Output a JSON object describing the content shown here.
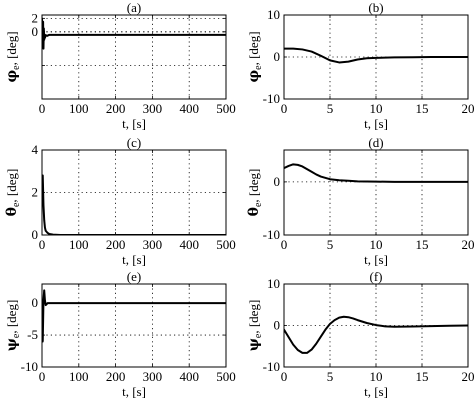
{
  "chart_data": [
    {
      "type": "line",
      "title": "(a)",
      "xlabel": "t, [s]",
      "ylabel": {
        "symbol": "φ",
        "sub": "e",
        "unit": ", [deg]"
      },
      "xlim": [
        0,
        500
      ],
      "ylim": [
        -10,
        2.5
      ],
      "xticks": [
        0,
        100,
        200,
        300,
        400,
        500
      ],
      "yticks": [
        -10,
        -5,
        0
      ],
      "yticklabels": [
        "",
        "",
        ""
      ],
      "extra_yticklabels": [
        {
          "value": 2,
          "label": "2"
        },
        {
          "value": 0,
          "label": "0"
        }
      ],
      "grid": true,
      "series": [
        {
          "x": [
            0,
            2,
            3,
            4,
            5,
            6,
            7,
            8,
            10,
            14,
            20,
            40,
            100,
            200,
            300,
            400,
            500
          ],
          "y": [
            2.0,
            -1.0,
            1.5,
            -2.5,
            0.5,
            -1.2,
            -0.4,
            -0.9,
            -0.5,
            -0.6,
            -0.45,
            -0.45,
            -0.45,
            -0.45,
            -0.45,
            -0.45,
            -0.45
          ]
        }
      ]
    },
    {
      "type": "line",
      "title": "(b)",
      "xlabel": "t, [s]",
      "ylabel": {
        "symbol": "φ",
        "sub": "e",
        "unit": ", [deg]"
      },
      "xlim": [
        0,
        20
      ],
      "ylim": [
        -10,
        10
      ],
      "xticks": [
        0,
        5,
        10,
        15,
        20
      ],
      "xticklabels": [
        "0",
        "5",
        "10",
        "15",
        "20"
      ],
      "yticks": [
        -10,
        0,
        10
      ],
      "yticklabels": [
        "-10",
        "0",
        "10"
      ],
      "grid": true,
      "series": [
        {
          "x": [
            0,
            1,
            2,
            3,
            4,
            5,
            6,
            7,
            8,
            9,
            10,
            11,
            12,
            14,
            16,
            18,
            20
          ],
          "y": [
            2.0,
            2.0,
            1.8,
            1.3,
            0.3,
            -0.8,
            -1.3,
            -1.1,
            -0.6,
            -0.3,
            -0.2,
            -0.15,
            -0.1,
            -0.05,
            0,
            0,
            0
          ]
        }
      ]
    },
    {
      "type": "line",
      "title": "(c)",
      "xlabel": "t, [s]",
      "ylabel": {
        "symbol": "θ",
        "sub": "e",
        "unit": ", [deg]"
      },
      "xlim": [
        0,
        500
      ],
      "ylim": [
        0,
        4
      ],
      "xticks": [
        0,
        100,
        200,
        300,
        400,
        500
      ],
      "yticks": [
        0,
        2,
        4
      ],
      "yticklabels": [
        "0",
        "2",
        "4"
      ],
      "grid": true,
      "series": [
        {
          "x": [
            0,
            2,
            4,
            6,
            8,
            10,
            15,
            20,
            30,
            50,
            100,
            200,
            300,
            400,
            500
          ],
          "y": [
            2.5,
            2.8,
            1.4,
            0.7,
            0.35,
            0.2,
            0.1,
            0.05,
            0.02,
            0,
            0,
            0,
            0,
            0,
            0
          ]
        }
      ]
    },
    {
      "type": "line",
      "title": "(d)",
      "xlabel": "",
      "ylabel": {
        "symbol": "θ",
        "sub": "e",
        "unit": ", [deg]"
      },
      "xlim": [
        0,
        20
      ],
      "ylim": [
        -10,
        6
      ],
      "xticks": [
        0,
        5,
        10,
        15,
        20
      ],
      "xticklabels": [
        "0",
        "5",
        "10",
        "15",
        "20"
      ],
      "yticks": [
        -10,
        0
      ],
      "yticklabels": [
        "-10",
        "0"
      ],
      "extra_ytick_grid": [],
      "grid": true,
      "series": [
        {
          "x": [
            0,
            0.5,
            1,
            1.5,
            2,
            2.5,
            3,
            3.5,
            4,
            5,
            6,
            7,
            8,
            10,
            12,
            15,
            20
          ],
          "y": [
            2.6,
            3.0,
            3.3,
            3.2,
            2.9,
            2.4,
            1.9,
            1.4,
            1.0,
            0.5,
            0.3,
            0.2,
            0.1,
            0.05,
            0,
            0,
            0
          ]
        }
      ]
    },
    {
      "type": "line",
      "title": "(e)",
      "xlabel": "t, [s]",
      "ylabel": {
        "symbol": "ψ",
        "sub": "e",
        "unit": ", [deg]"
      },
      "xlim": [
        0,
        500
      ],
      "ylim": [
        -10,
        3
      ],
      "xticks": [
        0,
        100,
        200,
        300,
        400,
        500
      ],
      "yticks": [
        -10,
        -5,
        0
      ],
      "yticklabels": [
        "-10",
        "-5",
        "0"
      ],
      "grid": true,
      "series": [
        {
          "x": [
            0,
            2,
            4,
            6,
            8,
            10,
            12,
            15,
            20,
            30,
            100,
            200,
            300,
            400,
            500
          ],
          "y": [
            -1.0,
            -6.0,
            0.5,
            2.0,
            0.4,
            -0.3,
            -0.2,
            0,
            0,
            0,
            0,
            0,
            0,
            0,
            0
          ]
        }
      ]
    },
    {
      "type": "line",
      "title": "(f)",
      "xlabel": "t, [s]",
      "ylabel": {
        "symbol": "ψ",
        "sub": "e",
        "unit": ", [deg]"
      },
      "xlim": [
        0,
        20
      ],
      "ylim": [
        -10,
        10
      ],
      "xticks": [
        0,
        5,
        10,
        15,
        20
      ],
      "xticklabels": [
        "0",
        "5",
        "10",
        "15",
        "20"
      ],
      "yticks": [
        -10,
        0,
        10
      ],
      "yticklabels": [
        "-10",
        "0",
        "10"
      ],
      "grid": true,
      "series": [
        {
          "x": [
            0,
            0.5,
            1,
            1.5,
            2,
            2.5,
            3,
            3.5,
            4,
            4.5,
            5,
            5.5,
            6,
            6.5,
            7,
            7.5,
            8,
            9,
            10,
            11,
            12,
            14,
            16,
            18,
            20
          ],
          "y": [
            -1.0,
            -2.8,
            -4.6,
            -5.9,
            -6.6,
            -6.6,
            -5.8,
            -4.4,
            -2.7,
            -1.0,
            0.4,
            1.3,
            1.9,
            2.1,
            2.0,
            1.7,
            1.3,
            0.6,
            0.1,
            -0.2,
            -0.3,
            -0.25,
            -0.15,
            -0.05,
            0
          ]
        }
      ]
    }
  ],
  "extra_labels": {
    "d_xlabel": "t, [s]"
  }
}
